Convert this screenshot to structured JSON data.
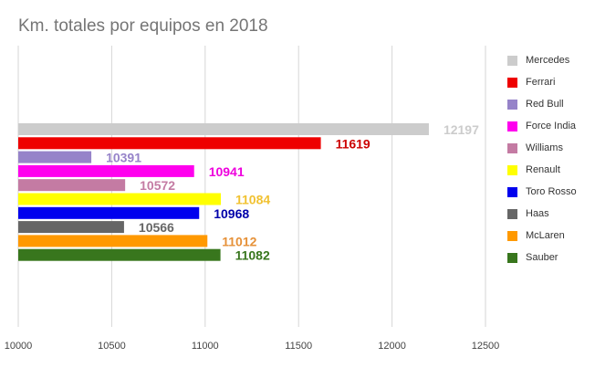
{
  "chart_data": {
    "type": "bar",
    "orientation": "horizontal",
    "title": "Km. totales por equipos en 2018",
    "xlabel": "",
    "ylabel": "",
    "xlim": [
      10000,
      12500
    ],
    "x_ticks": [
      "10000",
      "10500",
      "11000",
      "11500",
      "12000",
      "12500"
    ],
    "grid": true,
    "legend_position": "right",
    "categories": [
      "Mercedes",
      "Ferrari",
      "Red Bull",
      "Force India",
      "Williams",
      "Renault",
      "Toro Rosso",
      "Haas",
      "McLaren",
      "Sauber"
    ],
    "values": [
      12197,
      11619,
      10391,
      10941,
      10572,
      11084,
      10968,
      10566,
      11012,
      11082
    ],
    "value_labels": [
      "12197",
      "11619",
      "10391",
      "10941",
      "10572",
      "11084",
      "10968",
      "10566",
      "11012",
      "11082"
    ],
    "colors": [
      "#cccccc",
      "#ee0000",
      "#9683c9",
      "#ff00ee",
      "#c47ba3",
      "#ffff00",
      "#0000ee",
      "#666666",
      "#ff9900",
      "#38761d"
    ],
    "label_colors": [
      "#cccccc",
      "#cc0000",
      "#9683c9",
      "#ee00dd",
      "#c47ba3",
      "#f1c232",
      "#0000aa",
      "#666666",
      "#e69138",
      "#38761d"
    ]
  }
}
